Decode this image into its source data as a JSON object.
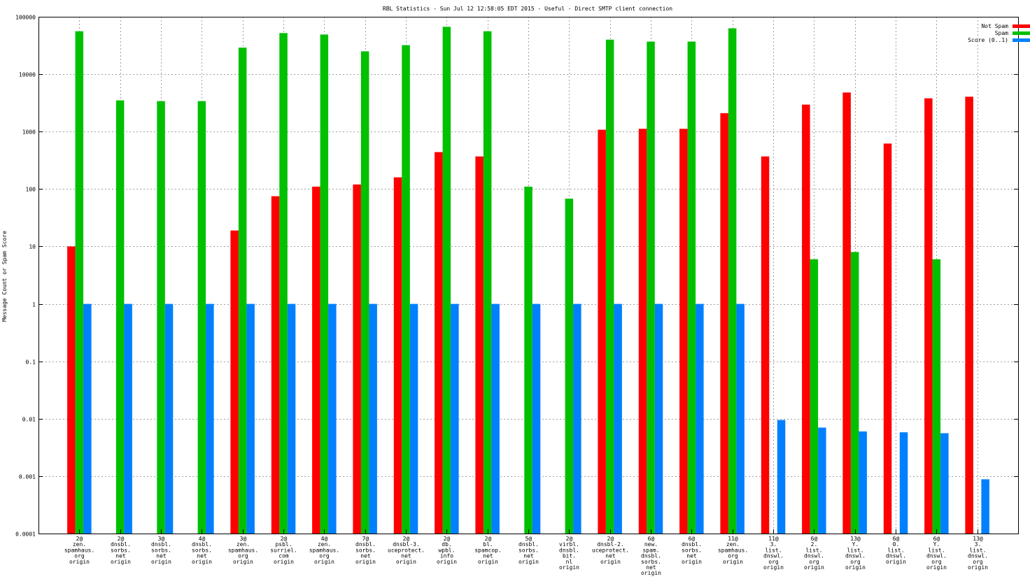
{
  "chart_data": {
    "type": "bar",
    "title": "RBL Statistics - Sun Jul 12 12:58:05 EDT 2015 - Useful - Direct SMTP client connection",
    "xlabel": "",
    "ylabel": "Message Count or Spam Score",
    "yscale": "log",
    "ylim": [
      0.0001,
      100000
    ],
    "yticks": [
      "100000",
      "10000",
      "1000",
      "100",
      "10",
      "1",
      "0.1",
      "0.01",
      "0.001",
      "0.0001"
    ],
    "grid": true,
    "legend_position": "top-right",
    "categories": [
      [
        "2@",
        "zen.",
        "spamhaus.",
        "org",
        "origin"
      ],
      [
        "2@",
        "dnsbl.",
        "sorbs.",
        "net",
        "origin"
      ],
      [
        "3@",
        "dnsbl.",
        "sorbs.",
        "net",
        "origin"
      ],
      [
        "4@",
        "dnsbl.",
        "sorbs.",
        "net",
        "origin"
      ],
      [
        "3@",
        "zen.",
        "spamhaus.",
        "org",
        "origin"
      ],
      [
        "2@",
        "psbl.",
        "surriel.",
        "com",
        "origin"
      ],
      [
        "4@",
        "zen.",
        "spamhaus.",
        "org",
        "origin"
      ],
      [
        "7@",
        "dnsbl.",
        "sorbs.",
        "net",
        "origin"
      ],
      [
        "2@",
        "dnsbl-3.",
        "uceprotect.",
        "net",
        "origin"
      ],
      [
        "2@",
        "db.",
        "wpbl.",
        "info",
        "origin"
      ],
      [
        "2@",
        "bl.",
        "spamcop.",
        "net",
        "origin"
      ],
      [
        "5@",
        "dnsbl.",
        "sorbs.",
        "net",
        "origin"
      ],
      [
        "2@",
        "virbl.",
        "dnsbl.",
        "bit.",
        "nl",
        "origin"
      ],
      [
        "2@",
        "dnsbl-2.",
        "uceprotect.",
        "net",
        "origin"
      ],
      [
        "6@",
        "new.",
        "spam.",
        "dnsbl.",
        "sorbs.",
        "net",
        "origin"
      ],
      [
        "6@",
        "dnsbl.",
        "sorbs.",
        "net",
        "origin"
      ],
      [
        "11@",
        "zen.",
        "spamhaus.",
        "org",
        "origin"
      ],
      [
        "11@",
        "3.",
        "list.",
        "dnswl.",
        "org",
        "origin"
      ],
      [
        "6@",
        "2.",
        "list.",
        "dnswl.",
        "org",
        "origin"
      ],
      [
        "13@",
        "Y.",
        "list.",
        "dnswl.",
        "org",
        "origin"
      ],
      [
        "6@",
        "0.",
        "list.",
        "dnswl.",
        "origin"
      ],
      [
        "6@",
        "Y.",
        "list.",
        "dnswl.",
        "org",
        "origin"
      ],
      [
        "13@",
        "3.",
        "list.",
        "dnswl.",
        "org",
        "origin"
      ]
    ],
    "series": [
      {
        "name": "Not Spam",
        "color": "#ff0000",
        "values": [
          10,
          null,
          null,
          null,
          19,
          75,
          110,
          120,
          160,
          440,
          370,
          null,
          null,
          1080,
          1120,
          1120,
          2100,
          370,
          2950,
          4800,
          620,
          3800,
          4050
        ]
      },
      {
        "name": "Spam",
        "color": "#00c000",
        "values": [
          56000,
          3500,
          3400,
          3400,
          29000,
          52000,
          49000,
          25000,
          32000,
          67000,
          56000,
          110,
          68,
          40000,
          37000,
          37000,
          63000,
          null,
          6,
          8,
          null,
          6,
          null
        ]
      },
      {
        "name": "Score (0..1)",
        "color": "#0080ff",
        "values": [
          1,
          1,
          1,
          1,
          1,
          1,
          1,
          1,
          1,
          1,
          1,
          1,
          1,
          1,
          1,
          1,
          1,
          0.0095,
          0.007,
          0.006,
          0.0058,
          0.0056,
          0.00088
        ]
      }
    ]
  }
}
